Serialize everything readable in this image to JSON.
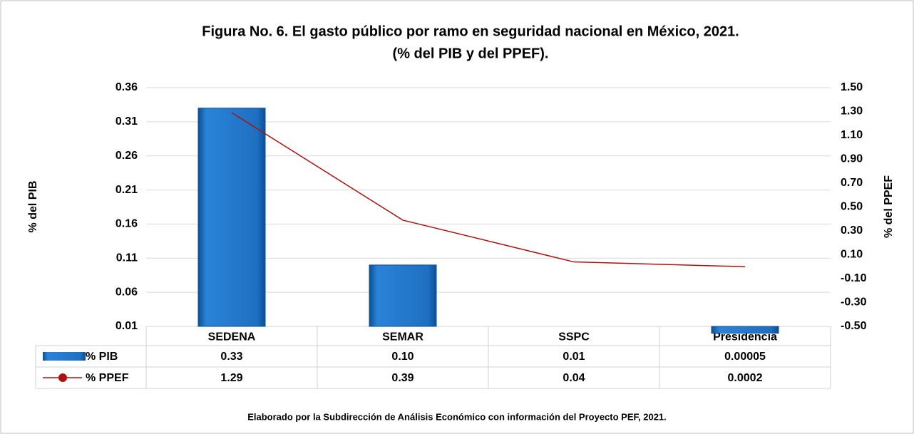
{
  "chart_data": {
    "type": "bar-line",
    "title": "Figura No. 6. El gasto público por ramo en seguridad nacional en México, 2021.",
    "subtitle": "(% del PIB y del PPEF).",
    "ylabel": "% del PIB",
    "y2label": "% del PPEF",
    "note": "Elaborado por la Subdirección de Análisis Económico con información del  Proyecto PEF, 2021.",
    "categories": [
      "SEDENA",
      "SEMAR",
      "SSPC",
      "Presidencia"
    ],
    "series": [
      {
        "name": "% PIB",
        "type": "bar",
        "color": "#1f6fc0",
        "values": [
          0.33,
          0.1,
          0.01,
          5e-05
        ],
        "value_labels": [
          "0.33",
          "0.10",
          "0.01",
          "0.00005"
        ]
      },
      {
        "name": "% PPEF",
        "type": "line",
        "axis": "y2",
        "color": "#b01010",
        "values": [
          1.29,
          0.39,
          0.04,
          0.0002
        ],
        "value_labels": [
          "1.29",
          "0.39",
          "0.04",
          "0.0002"
        ]
      }
    ],
    "ylim": [
      0.01,
      0.36
    ],
    "yticks": [
      0.01,
      0.06,
      0.11,
      0.16,
      0.21,
      0.26,
      0.31,
      0.36
    ],
    "y2lim": [
      -0.5,
      1.5
    ],
    "y2ticks": [
      {
        "value": -0.5,
        "label": "-0.50"
      },
      {
        "value": -0.3,
        "label": "-0.30"
      },
      {
        "value": -0.1,
        "label": "-0.10"
      },
      {
        "value": 0.1,
        "label": "0.10"
      },
      {
        "value": 0.3,
        "label": "0.30"
      },
      {
        "value": 0.5,
        "label": "0.50"
      },
      {
        "value": 0.7,
        "label": "0.70"
      },
      {
        "value": 0.9,
        "label": "0.90"
      },
      {
        "value": 1.1,
        "label": "1.10"
      },
      {
        "value": 1.3,
        "label": "1.30"
      },
      {
        "value": 1.5,
        "label": "1.50"
      }
    ],
    "grid": true
  }
}
